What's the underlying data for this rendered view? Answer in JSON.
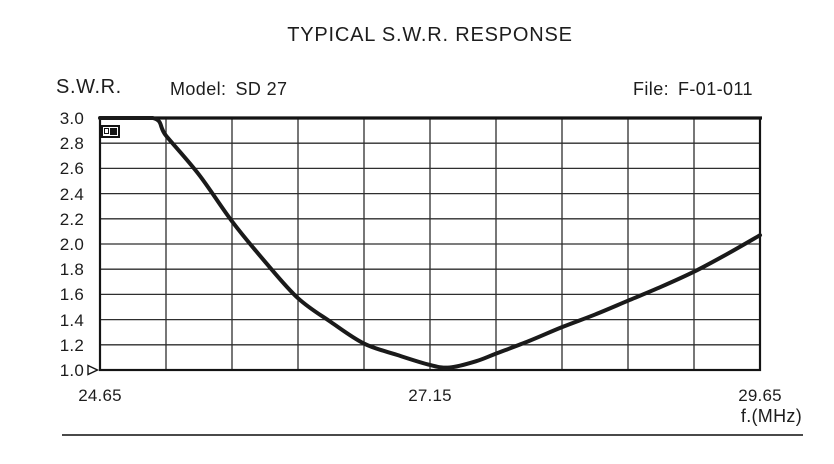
{
  "header": {
    "y_axis_name": "S.W.R.",
    "model_label": "Model:",
    "model_value": "SD 27",
    "file_label": "File:",
    "file_value": "F-01-011"
  },
  "colors": {
    "ink": "#1d1d1d",
    "grid_line": "#2e2e2e",
    "plot_border": "#141414",
    "curve": "#1a1a1a",
    "bottom_rule": "#4a4a4a",
    "background": "#ffffff"
  },
  "icons": {
    "corner_icon": "placeholder-image-icon",
    "baseline_pointer": "right-triangle-outline"
  },
  "chart_data": {
    "type": "line",
    "title": "TYPICAL S.W.R. RESPONSE",
    "xlabel": "f.(MHz)",
    "ylabel": "S.W.R.",
    "xlim": [
      24.65,
      29.65
    ],
    "ylim": [
      1.0,
      3.0
    ],
    "grid": true,
    "x_grid_step": 0.5,
    "y_grid_step": 0.2,
    "x_ticks": [
      {
        "v": 24.65,
        "label": "24.65"
      },
      {
        "v": 27.15,
        "label": "27.15"
      },
      {
        "v": 29.65,
        "label": "29.65"
      }
    ],
    "y_ticks": [
      {
        "v": 3.0,
        "label": "3.0"
      },
      {
        "v": 2.8,
        "label": "2.8"
      },
      {
        "v": 2.6,
        "label": "2.6"
      },
      {
        "v": 2.4,
        "label": "2.4"
      },
      {
        "v": 2.2,
        "label": "2.2"
      },
      {
        "v": 2.0,
        "label": "2.0"
      },
      {
        "v": 1.8,
        "label": "1.8"
      },
      {
        "v": 1.6,
        "label": "1.6"
      },
      {
        "v": 1.4,
        "label": "1.4"
      },
      {
        "v": 1.2,
        "label": "1.2"
      },
      {
        "v": 1.0,
        "label": "1.0"
      }
    ],
    "series": [
      {
        "name": "Typical S.W.R. response curve",
        "x": [
          24.65,
          25.05,
          25.15,
          25.4,
          25.65,
          25.9,
          26.15,
          26.4,
          26.65,
          26.9,
          27.15,
          27.3,
          27.5,
          27.65,
          27.9,
          28.15,
          28.4,
          28.65,
          28.9,
          29.15,
          29.4,
          29.65
        ],
        "y": [
          3.0,
          3.0,
          2.86,
          2.55,
          2.18,
          1.86,
          1.57,
          1.38,
          1.21,
          1.12,
          1.04,
          1.02,
          1.07,
          1.13,
          1.23,
          1.34,
          1.44,
          1.55,
          1.66,
          1.78,
          1.92,
          2.07
        ]
      }
    ],
    "annotations": {
      "min_swr": 1.02,
      "min_freq": 27.3,
      "clipped_at_top_until": 25.05
    }
  }
}
